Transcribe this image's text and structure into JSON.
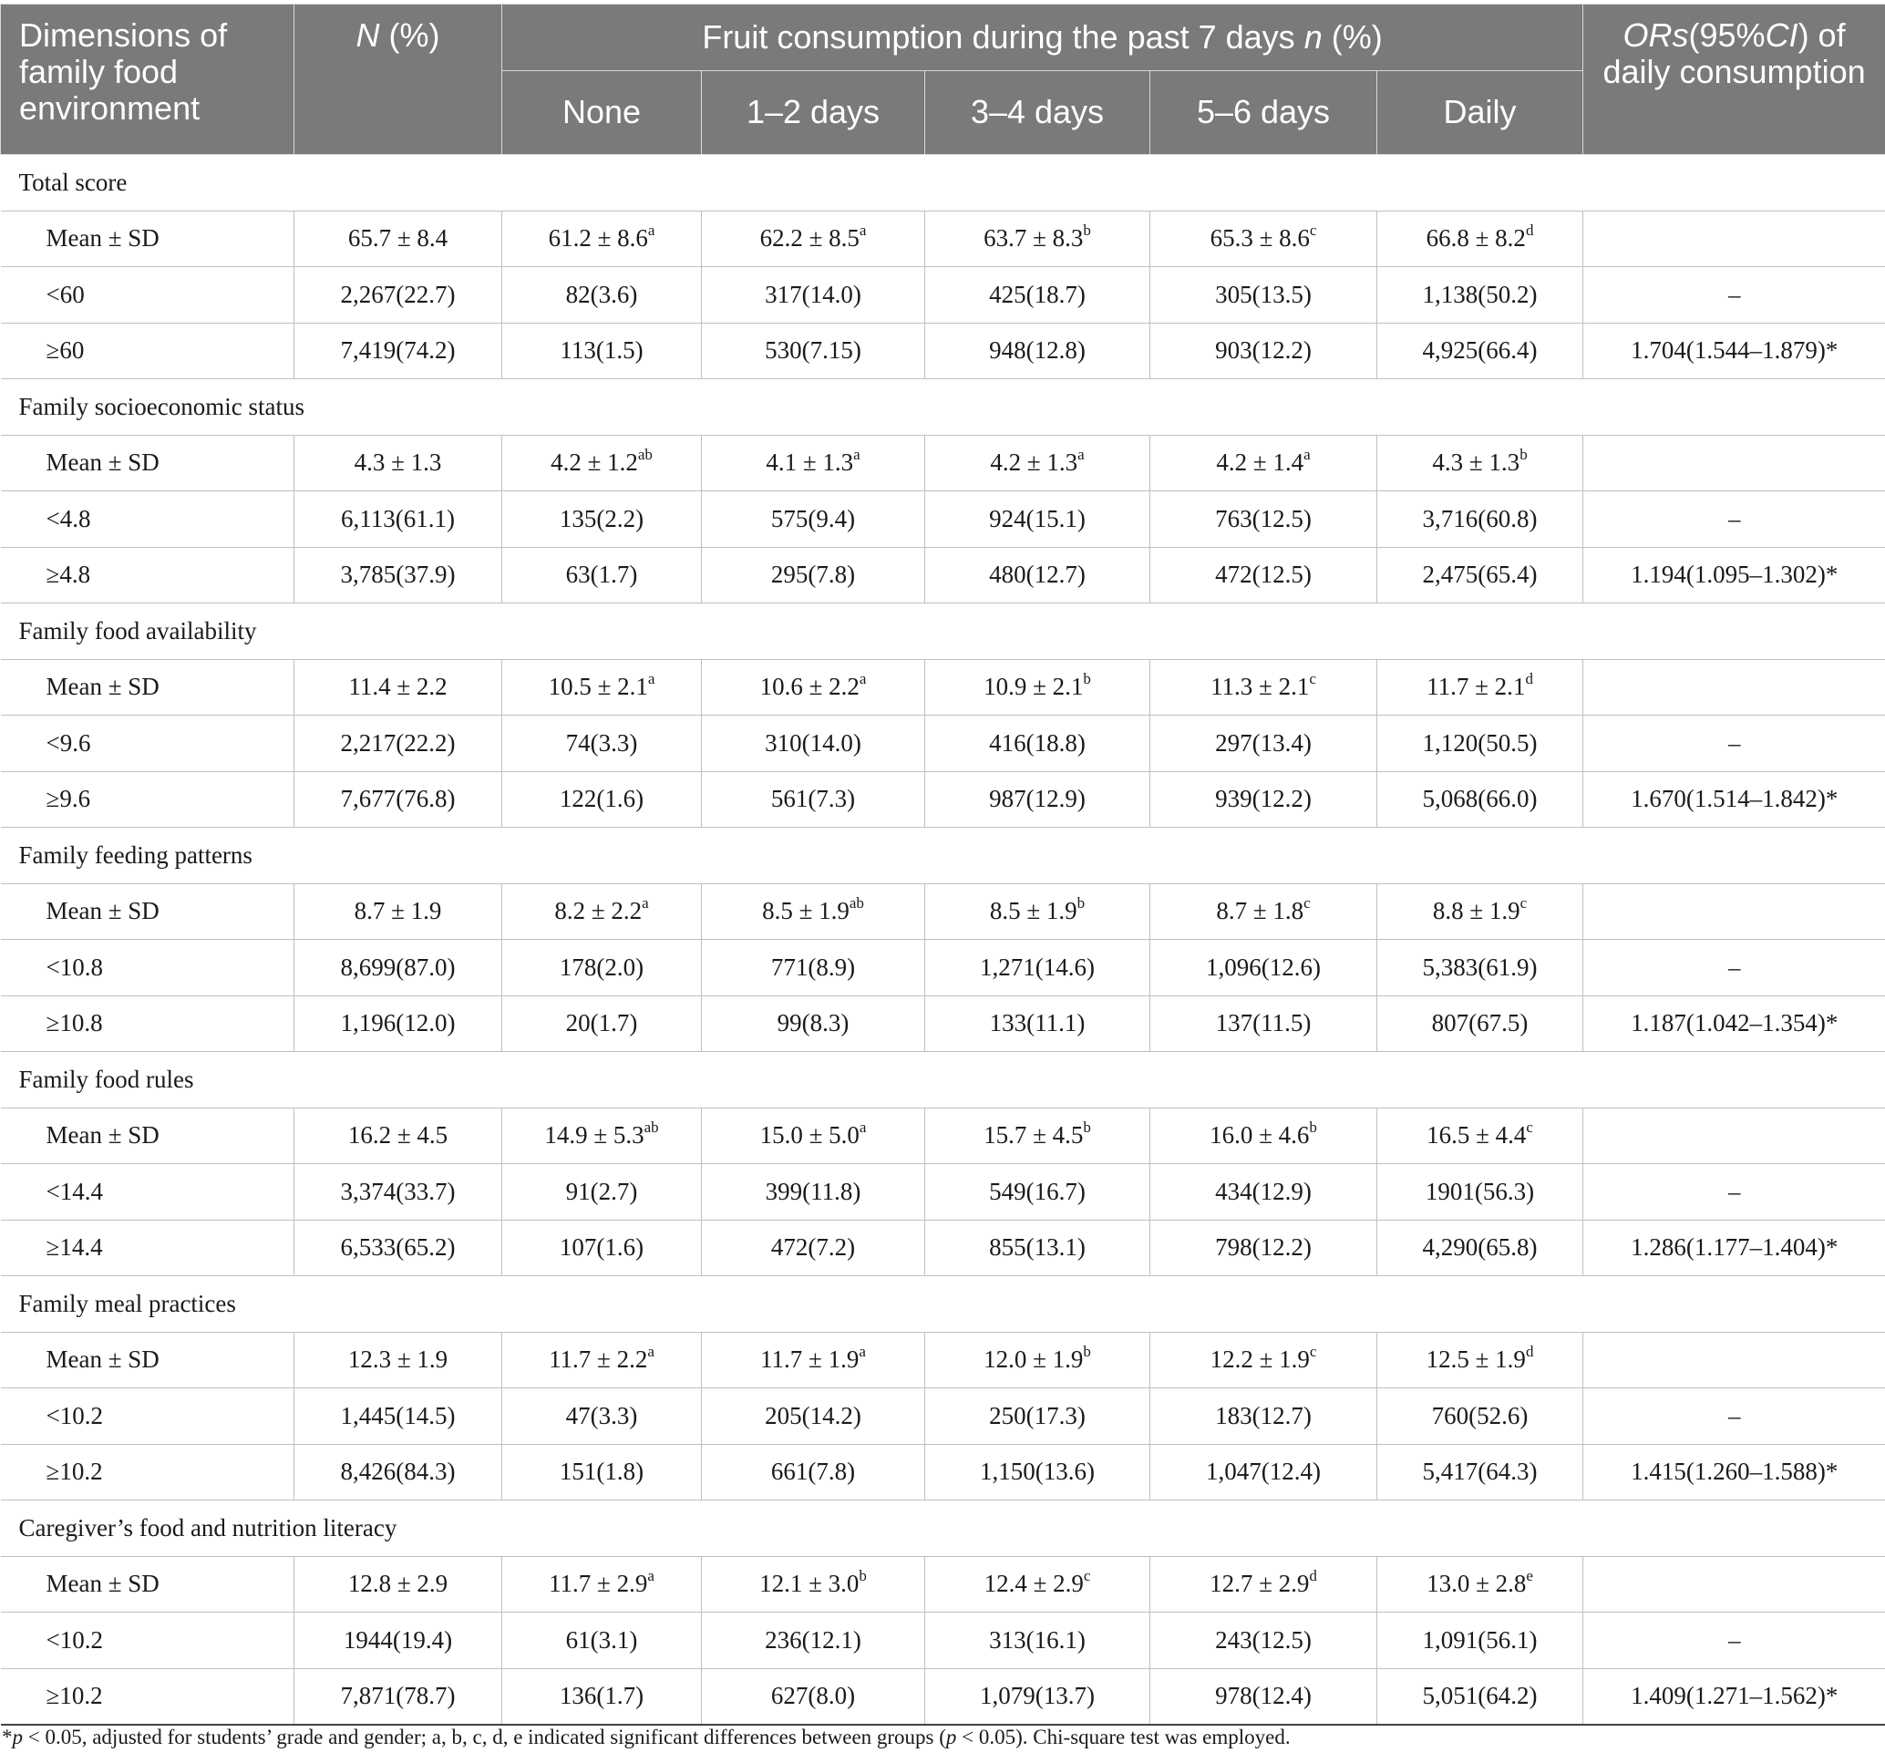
{
  "header": {
    "dimensions": "Dimensions of family food environment",
    "n_pct": "N (%)",
    "fruit_group": "Fruit consumption during the past 7 days n (%)",
    "none": "None",
    "d12": "1–2 days",
    "d34": "3–4 days",
    "d56": "5–6 days",
    "daily": "Daily",
    "ors": "ORs(95%CI) of daily consumption"
  },
  "sections": [
    {
      "title": "Total score",
      "rows": [
        {
          "label": "Mean ± SD",
          "n": "65.7 ± 8.4",
          "none": "61.2 ± 8.6",
          "none_sup": "a",
          "d12": "62.2 ± 8.5",
          "d12_sup": "a",
          "d34": "63.7 ± 8.3",
          "d34_sup": "b",
          "d56": "65.3 ± 8.6",
          "d56_sup": "c",
          "daily": "66.8 ± 8.2",
          "daily_sup": "d",
          "or": ""
        },
        {
          "label": "<60",
          "n": "2,267(22.7)",
          "none": "82(3.6)",
          "d12": "317(14.0)",
          "d34": "425(18.7)",
          "d56": "305(13.5)",
          "daily": "1,138(50.2)",
          "or": "–"
        },
        {
          "label": "≥60",
          "n": "7,419(74.2)",
          "none": "113(1.5)",
          "d12": "530(7.15)",
          "d34": "948(12.8)",
          "d56": "903(12.2)",
          "daily": "4,925(66.4)",
          "or": "1.704(1.544–1.879)*"
        }
      ]
    },
    {
      "title": "Family socioeconomic status",
      "rows": [
        {
          "label": "Mean ± SD",
          "n": "4.3 ± 1.3",
          "none": "4.2 ± 1.2",
          "none_sup": "ab",
          "d12": "4.1 ± 1.3",
          "d12_sup": "a",
          "d34": "4.2 ± 1.3",
          "d34_sup": "a",
          "d56": "4.2 ± 1.4",
          "d56_sup": "a",
          "daily": "4.3 ± 1.3",
          "daily_sup": "b",
          "or": ""
        },
        {
          "label": "<4.8",
          "n": "6,113(61.1)",
          "none": "135(2.2)",
          "d12": "575(9.4)",
          "d34": "924(15.1)",
          "d56": "763(12.5)",
          "daily": "3,716(60.8)",
          "or": "–"
        },
        {
          "label": "≥4.8",
          "n": "3,785(37.9)",
          "none": "63(1.7)",
          "d12": "295(7.8)",
          "d34": "480(12.7)",
          "d56": "472(12.5)",
          "daily": "2,475(65.4)",
          "or": "1.194(1.095–1.302)*"
        }
      ]
    },
    {
      "title": "Family food availability",
      "rows": [
        {
          "label": "Mean ± SD",
          "n": "11.4 ± 2.2",
          "none": "10.5 ± 2.1",
          "none_sup": "a",
          "d12": "10.6 ± 2.2",
          "d12_sup": "a",
          "d34": "10.9 ± 2.1",
          "d34_sup": "b",
          "d56": "11.3 ± 2.1",
          "d56_sup": "c",
          "daily": "11.7 ± 2.1",
          "daily_sup": "d",
          "or": ""
        },
        {
          "label": "<9.6",
          "n": "2,217(22.2)",
          "none": "74(3.3)",
          "d12": "310(14.0)",
          "d34": "416(18.8)",
          "d56": "297(13.4)",
          "daily": "1,120(50.5)",
          "or": "–"
        },
        {
          "label": "≥9.6",
          "n": "7,677(76.8)",
          "none": "122(1.6)",
          "d12": "561(7.3)",
          "d34": "987(12.9)",
          "d56": "939(12.2)",
          "daily": "5,068(66.0)",
          "or": "1.670(1.514–1.842)*"
        }
      ]
    },
    {
      "title": "Family feeding patterns",
      "rows": [
        {
          "label": "Mean ± SD",
          "n": "8.7 ± 1.9",
          "none": "8.2 ± 2.2",
          "none_sup": "a",
          "d12": "8.5 ± 1.9",
          "d12_sup": "ab",
          "d34": "8.5 ± 1.9",
          "d34_sup": "b",
          "d56": "8.7 ± 1.8",
          "d56_sup": "c",
          "daily": "8.8 ± 1.9",
          "daily_sup": "c",
          "or": ""
        },
        {
          "label": "<10.8",
          "n": "8,699(87.0)",
          "none": "178(2.0)",
          "d12": "771(8.9)",
          "d34": "1,271(14.6)",
          "d56": "1,096(12.6)",
          "daily": "5,383(61.9)",
          "or": "–"
        },
        {
          "label": "≥10.8",
          "n": "1,196(12.0)",
          "none": "20(1.7)",
          "d12": "99(8.3)",
          "d34": "133(11.1)",
          "d56": "137(11.5)",
          "daily": "807(67.5)",
          "or": "1.187(1.042–1.354)*"
        }
      ]
    },
    {
      "title": "Family food rules",
      "rows": [
        {
          "label": "Mean ± SD",
          "n": "16.2 ± 4.5",
          "none": "14.9 ± 5.3",
          "none_sup": "ab",
          "d12": "15.0 ± 5.0",
          "d12_sup": "a",
          "d34": "15.7 ± 4.5",
          "d34_sup": "b",
          "d56": "16.0 ± 4.6",
          "d56_sup": "b",
          "daily": "16.5 ± 4.4",
          "daily_sup": "c",
          "or": ""
        },
        {
          "label": "<14.4",
          "n": "3,374(33.7)",
          "none": "91(2.7)",
          "d12": "399(11.8)",
          "d34": "549(16.7)",
          "d56": "434(12.9)",
          "daily": "1901(56.3)",
          "or": "–"
        },
        {
          "label": "≥14.4",
          "n": "6,533(65.2)",
          "none": "107(1.6)",
          "d12": "472(7.2)",
          "d34": "855(13.1)",
          "d56": "798(12.2)",
          "daily": "4,290(65.8)",
          "or": "1.286(1.177–1.404)*"
        }
      ]
    },
    {
      "title": "Family meal practices",
      "rows": [
        {
          "label": "Mean ± SD",
          "n": "12.3 ± 1.9",
          "none": "11.7 ± 2.2",
          "none_sup": "a",
          "d12": "11.7 ± 1.9",
          "d12_sup": "a",
          "d34": "12.0 ± 1.9",
          "d34_sup": "b",
          "d56": "12.2 ± 1.9",
          "d56_sup": "c",
          "daily": "12.5 ± 1.9",
          "daily_sup": "d",
          "or": ""
        },
        {
          "label": "<10.2",
          "n": "1,445(14.5)",
          "none": "47(3.3)",
          "d12": "205(14.2)",
          "d34": "250(17.3)",
          "d56": "183(12.7)",
          "daily": "760(52.6)",
          "or": "–"
        },
        {
          "label": "≥10.2",
          "n": "8,426(84.3)",
          "none": "151(1.8)",
          "d12": "661(7.8)",
          "d34": "1,150(13.6)",
          "d56": "1,047(12.4)",
          "daily": "5,417(64.3)",
          "or": "1.415(1.260–1.588)*"
        }
      ]
    },
    {
      "title": "Caregiver’s food and nutrition literacy",
      "rows": [
        {
          "label": "Mean ± SD",
          "n": "12.8 ± 2.9",
          "none": "11.7 ± 2.9",
          "none_sup": "a",
          "d12": "12.1 ± 3.0",
          "d12_sup": "b",
          "d34": "12.4 ± 2.9",
          "d34_sup": "c",
          "d56": "12.7 ± 2.9",
          "d56_sup": "d",
          "daily": "13.0 ± 2.8",
          "daily_sup": "e",
          "or": ""
        },
        {
          "label": "<10.2",
          "n": "1944(19.4)",
          "none": "61(3.1)",
          "d12": "236(12.1)",
          "d34": "313(16.1)",
          "d56": "243(12.5)",
          "daily": "1,091(56.1)",
          "or": "–"
        },
        {
          "label": "≥10.2",
          "n": "7,871(78.7)",
          "none": "136(1.7)",
          "d12": "627(8.0)",
          "d34": "1,079(13.7)",
          "d56": "978(12.4)",
          "daily": "5,051(64.2)",
          "or": "1.409(1.271–1.562)*"
        }
      ]
    }
  ],
  "footnote": {
    "star": "*",
    "p": "p",
    "part1": " < 0.05, adjusted for students’ grade and gender; a, b, c, d, e indicated significant differences between groups (",
    "part2": " < 0.05). Chi-square test was employed."
  }
}
